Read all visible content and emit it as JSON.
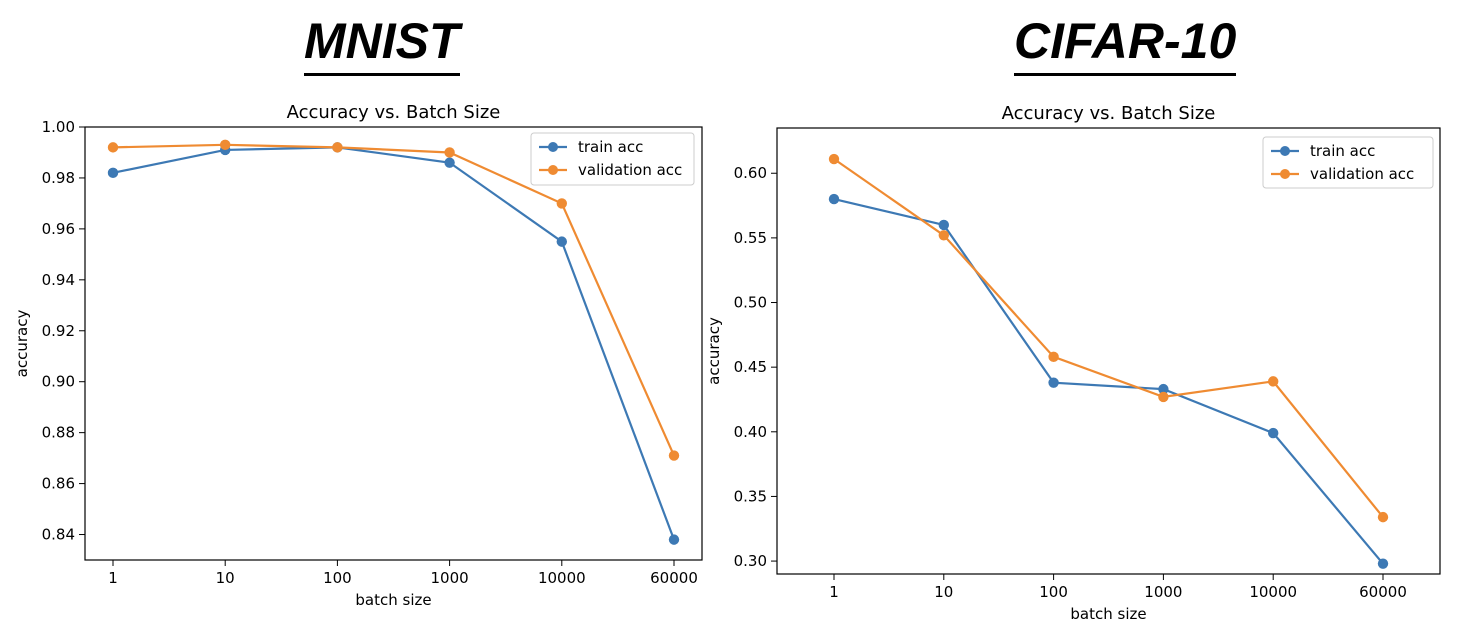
{
  "panels": [
    {
      "heading": "MNIST"
    },
    {
      "heading": "CIFAR-10"
    }
  ],
  "colors": {
    "train": "#3d79b4",
    "validation": "#ef8b32"
  },
  "chart_data": [
    {
      "type": "line",
      "title": "Accuracy vs. Batch Size",
      "xlabel": "batch size",
      "ylabel": "accuracy",
      "categories": [
        "1",
        "10",
        "100",
        "1000",
        "10000",
        "60000"
      ],
      "ylim": [
        0.83,
        1.0
      ],
      "yticks": [
        "0.84",
        "0.86",
        "0.88",
        "0.90",
        "0.92",
        "0.94",
        "0.96",
        "0.98",
        "1.00"
      ],
      "grid": false,
      "legend_position": "top-right",
      "series": [
        {
          "name": "train acc",
          "values": [
            0.982,
            0.991,
            0.992,
            0.986,
            0.955,
            0.838
          ]
        },
        {
          "name": "validation acc",
          "values": [
            0.992,
            0.993,
            0.992,
            0.99,
            0.97,
            0.871
          ]
        }
      ]
    },
    {
      "type": "line",
      "title": "Accuracy vs. Batch Size",
      "xlabel": "batch size",
      "ylabel": "accuracy",
      "categories": [
        "1",
        "10",
        "100",
        "1000",
        "10000",
        "60000"
      ],
      "ylim": [
        0.29,
        0.635
      ],
      "yticks": [
        "0.30",
        "0.35",
        "0.40",
        "0.45",
        "0.50",
        "0.55",
        "0.60"
      ],
      "grid": false,
      "legend_position": "top-right",
      "series": [
        {
          "name": "train acc",
          "values": [
            0.58,
            0.56,
            0.438,
            0.433,
            0.399,
            0.298
          ]
        },
        {
          "name": "validation acc",
          "values": [
            0.611,
            0.552,
            0.458,
            0.427,
            0.439,
            0.334
          ]
        }
      ]
    }
  ]
}
